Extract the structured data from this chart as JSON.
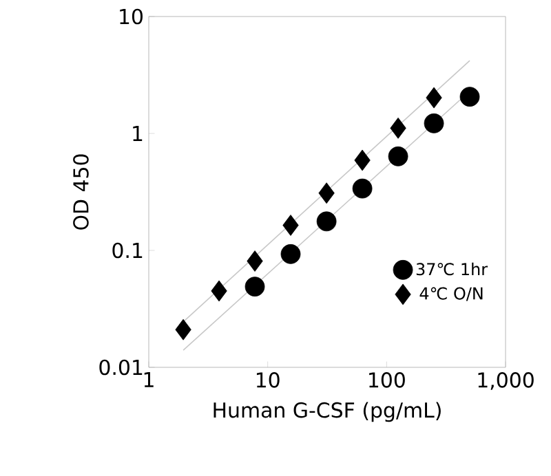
{
  "chart_data": {
    "type": "scatter",
    "xlabel": "Human G-CSF (pg/mL)",
    "ylabel": "OD 450",
    "log": "xy",
    "xlim": [
      1,
      1000
    ],
    "ylim": [
      0.01,
      10
    ],
    "xticks": [
      1,
      10,
      100,
      {
        "value": 1000,
        "label": "1,000"
      }
    ],
    "yticks": [
      0.01,
      0.1,
      1,
      10
    ],
    "grid": false,
    "legend": "bottom right",
    "series": [
      {
        "name": "37℃ 1hr",
        "color": "#000000",
        "marker": "circle",
        "x": [
          7.8,
          15.6,
          31.25,
          62.5,
          125,
          250,
          500
        ],
        "values": [
          0.049,
          0.093,
          0.177,
          0.338,
          0.637,
          1.22,
          2.06
        ]
      },
      {
        "name": "4℃ O/N",
        "color": "#000000",
        "marker": "diamond",
        "x": [
          1.95,
          3.9,
          7.8,
          15.6,
          31.25,
          62.5,
          125,
          250
        ],
        "values": [
          0.021,
          0.045,
          0.081,
          0.164,
          0.309,
          0.59,
          1.11,
          2.02
        ]
      },
      {
        "type": "line",
        "color": "#c8c8c8",
        "marker": "none",
        "x": [
          1.95,
          500
        ],
        "values": [
          0.0245,
          4.2
        ]
      },
      {
        "type": "line",
        "color": "#c8c8c8",
        "marker": "none",
        "x": [
          1.95,
          500
        ],
        "values": [
          0.014,
          2.3
        ]
      }
    ]
  }
}
